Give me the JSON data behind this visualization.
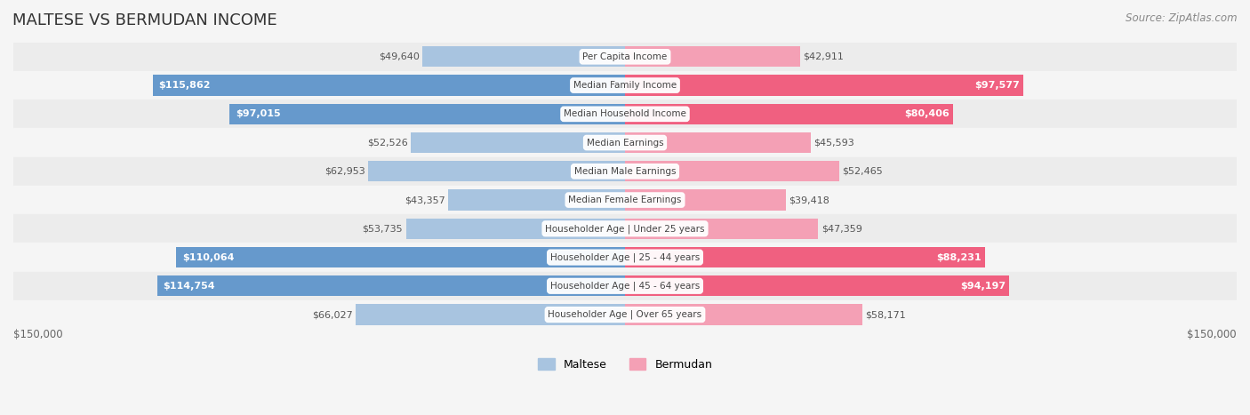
{
  "title": "MALTESE VS BERMUDAN INCOME",
  "source": "Source: ZipAtlas.com",
  "categories": [
    "Per Capita Income",
    "Median Family Income",
    "Median Household Income",
    "Median Earnings",
    "Median Male Earnings",
    "Median Female Earnings",
    "Householder Age | Under 25 years",
    "Householder Age | 25 - 44 years",
    "Householder Age | 45 - 64 years",
    "Householder Age | Over 65 years"
  ],
  "maltese_values": [
    49640,
    115862,
    97015,
    52526,
    62953,
    43357,
    53735,
    110064,
    114754,
    66027
  ],
  "bermudan_values": [
    42911,
    97577,
    80406,
    45593,
    52465,
    39418,
    47359,
    88231,
    94197,
    58171
  ],
  "maltese_labels": [
    "$49,640",
    "$115,862",
    "$97,015",
    "$52,526",
    "$62,953",
    "$43,357",
    "$53,735",
    "$110,064",
    "$114,754",
    "$66,027"
  ],
  "bermudan_labels": [
    "$42,911",
    "$97,577",
    "$80,406",
    "$45,593",
    "$52,465",
    "$39,418",
    "$47,359",
    "$88,231",
    "$94,197",
    "$58,171"
  ],
  "maltese_color_light": "#a8c4e0",
  "maltese_color_dark": "#6699cc",
  "bermudan_color_light": "#f4a0b5",
  "bermudan_color_dark": "#f06080",
  "max_value": 150000,
  "bg_color": "#f5f5f5",
  "bar_bg_color": "#e8e8e8",
  "row_bg_color": "#f0f0f0",
  "title_color": "#333333",
  "label_dark_threshold": 80000
}
